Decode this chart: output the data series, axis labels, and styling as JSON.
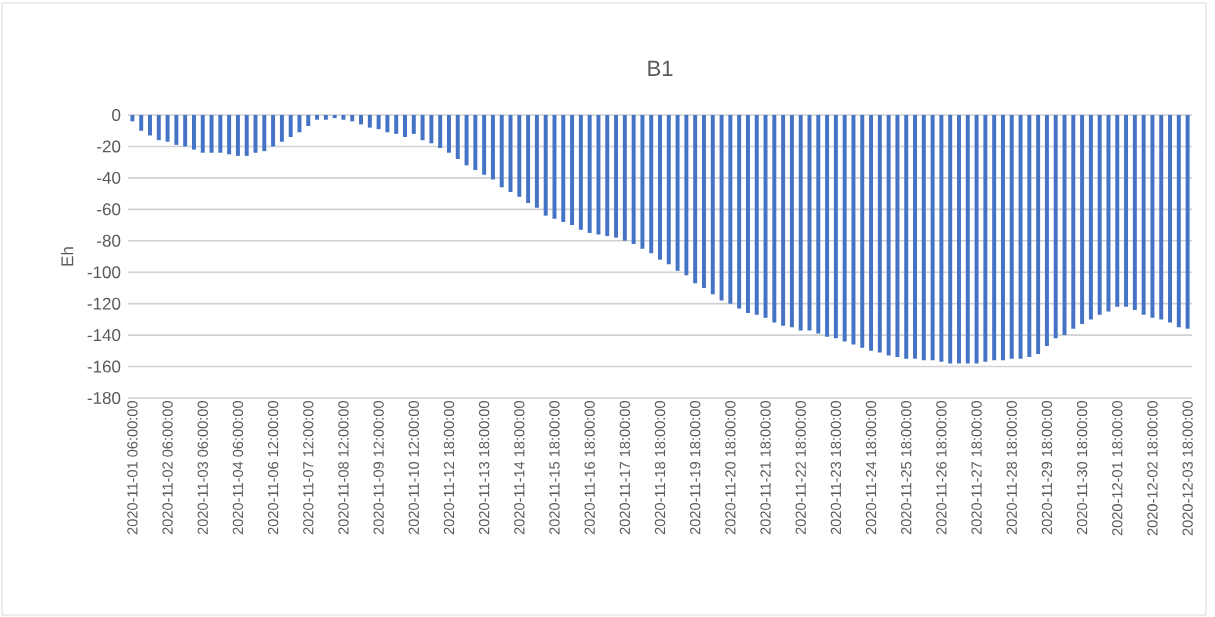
{
  "chart_data": {
    "type": "bar",
    "title": "B1",
    "ylabel": "Eh",
    "categories": [
      "2020-11-01 06:00:00",
      null,
      null,
      null,
      "2020-11-02 06:00:00",
      null,
      null,
      null,
      "2020-11-03 06:00:00",
      null,
      null,
      null,
      "2020-11-04 06:00:00",
      null,
      null,
      null,
      "2020-11-06 12:00:00",
      null,
      null,
      null,
      "2020-11-07 12:00:00",
      null,
      null,
      null,
      "2020-11-08 12:00:00",
      null,
      null,
      null,
      "2020-11-09 12:00:00",
      null,
      null,
      null,
      "2020-11-10 12:00:00",
      null,
      null,
      null,
      "2020-11-12 18:00:00",
      null,
      null,
      null,
      "2020-11-13 18:00:00",
      null,
      null,
      null,
      "2020-11-14 18:00:00",
      null,
      null,
      null,
      "2020-11-15 18:00:00",
      null,
      null,
      null,
      "2020-11-16 18:00:00",
      null,
      null,
      null,
      "2020-11-17 18:00:00",
      null,
      null,
      null,
      "2020-11-18 18:00:00",
      null,
      null,
      null,
      "2020-11-19 18:00:00",
      null,
      null,
      null,
      "2020-11-20 18:00:00",
      null,
      null,
      null,
      "2020-11-21 18:00:00",
      null,
      null,
      null,
      "2020-11-22 18:00:00",
      null,
      null,
      null,
      "2020-11-23 18:00:00",
      null,
      null,
      null,
      "2020-11-24 18:00:00",
      null,
      null,
      null,
      "2020-11-25 18:00:00",
      null,
      null,
      null,
      "2020-11-26 18:00:00",
      null,
      null,
      null,
      "2020-11-27 18:00:00",
      null,
      null,
      null,
      "2020-11-28 18:00:00",
      null,
      null,
      null,
      "2020-11-29 18:00:00",
      null,
      null,
      null,
      "2020-11-30 18:00:00",
      null,
      null,
      null,
      "2020-12-01 18:00:00",
      null,
      null,
      null,
      "2020-12-02 18:00:00",
      null,
      null,
      null,
      "2020-12-03 18:00:00"
    ],
    "values": [
      -4,
      -10,
      -13,
      -16,
      -17,
      -19,
      -20,
      -22,
      -24,
      -24,
      -24,
      -25,
      -26,
      -26,
      -24,
      -23,
      -20,
      -17,
      -14,
      -11,
      -7,
      -3,
      -3,
      -2,
      -3,
      -4,
      -6,
      -8,
      -9,
      -11,
      -12,
      -14,
      -12,
      -16,
      -18,
      -21,
      -24,
      -28,
      -32,
      -35,
      -38,
      -41,
      -46,
      -49,
      -52,
      -56,
      -59,
      -64,
      -66,
      -68,
      -70,
      -73,
      -75,
      -76,
      -77,
      -78,
      -80,
      -82,
      -85,
      -88,
      -92,
      -95,
      -99,
      -102,
      -107,
      -110,
      -114,
      -118,
      -120,
      -123,
      -126,
      -127,
      -129,
      -132,
      -134,
      -135,
      -137,
      -137,
      -139,
      -141,
      -142,
      -144,
      -146,
      -148,
      -150,
      -151,
      -153,
      -154,
      -155,
      -155,
      -156,
      -156,
      -157,
      -158,
      -158,
      -158,
      -158,
      -157,
      -156,
      -156,
      -155,
      -155,
      -154,
      -152,
      -147,
      -142,
      -140,
      -136,
      -133,
      -130,
      -127,
      -125,
      -122,
      -122,
      -124,
      -127,
      -129,
      -130,
      -132,
      -135,
      -136
    ],
    "color": "#4472c4",
    "ylim": [
      -180,
      0
    ],
    "yticks": [
      -180,
      -160,
      -140,
      -120,
      -100,
      -80,
      -60,
      -40,
      -20,
      0
    ],
    "grid": "y"
  }
}
